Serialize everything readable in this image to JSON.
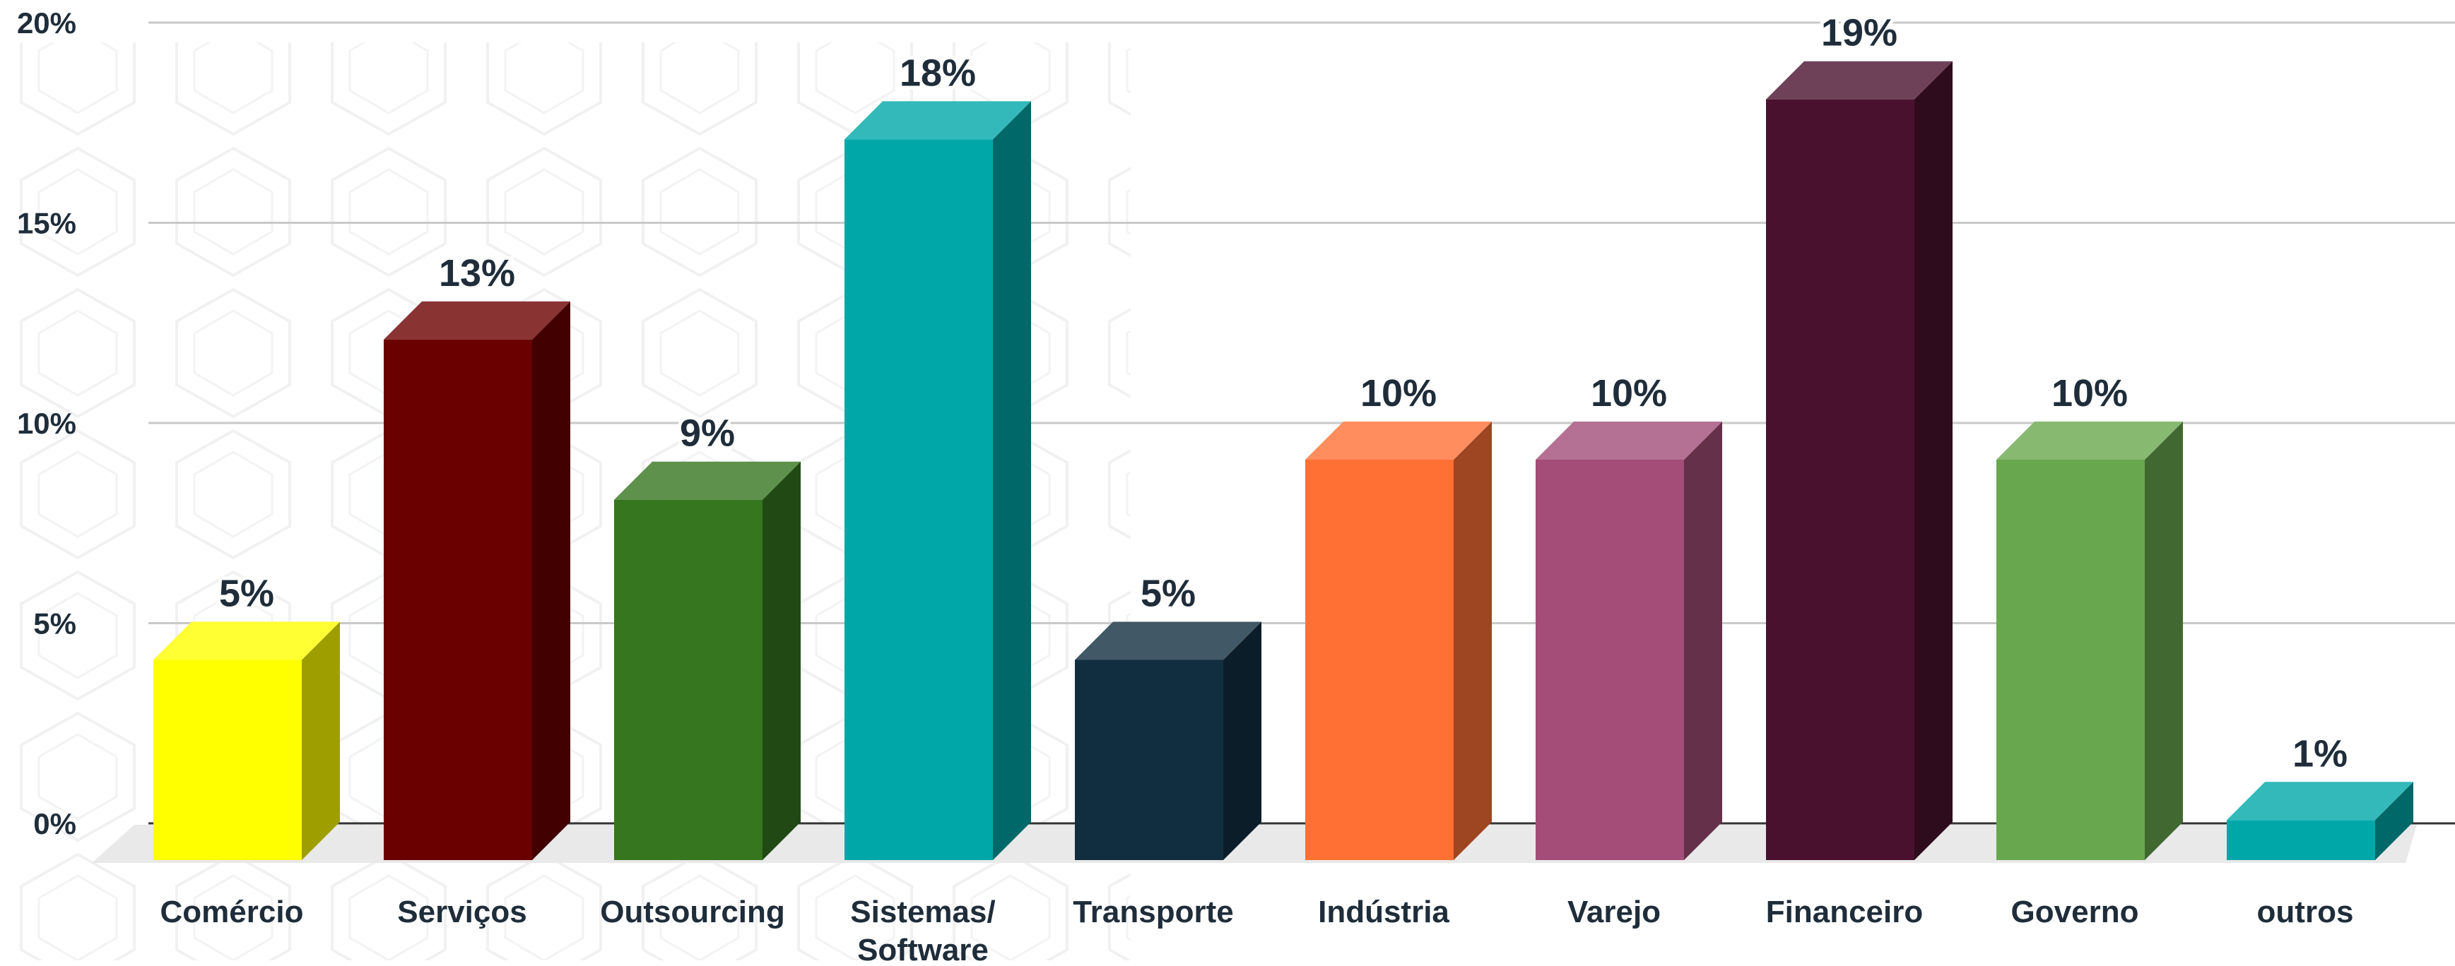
{
  "chart_data": {
    "type": "bar",
    "style": "3d-column",
    "categories": [
      "Comércio",
      "Serviços",
      "Outsourcing",
      "Sistemas/\nSoftware",
      "Transporte",
      "Indústria",
      "Varejo",
      "Financeiro",
      "Governo",
      "outros"
    ],
    "values": [
      5,
      13,
      9,
      18,
      5,
      10,
      10,
      19,
      10,
      1
    ],
    "value_labels": [
      "5%",
      "13%",
      "9%",
      "18%",
      "5%",
      "10%",
      "10%",
      "19%",
      "10%",
      "1%"
    ],
    "colors": [
      "#ffff00",
      "#6b0000",
      "#36761e",
      "#00a7a9",
      "#112e40",
      "#ff7035",
      "#a34d78",
      "#4a112e",
      "#69a74e",
      "#00a7a9"
    ],
    "yticks": [
      "0%",
      "5%",
      "10%",
      "15%",
      "20%"
    ],
    "ytick_values": [
      0,
      5,
      10,
      15,
      20
    ],
    "ylim": [
      0,
      20
    ],
    "title": "",
    "xlabel": "",
    "ylabel": "",
    "grid": true,
    "legend": "none"
  }
}
